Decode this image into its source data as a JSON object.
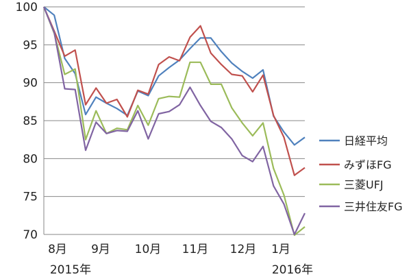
{
  "chart_data": {
    "type": "line",
    "title": "",
    "xlabel": "",
    "ylabel": "",
    "ylim": [
      70,
      100
    ],
    "yticks": [
      70,
      75,
      80,
      85,
      90,
      95,
      100
    ],
    "grid": "horizontal",
    "legend_position": "right",
    "x_month_labels": [
      "8月",
      "9月",
      "10月",
      "11月",
      "12月",
      "1月"
    ],
    "x_year_labels": [
      "2015年",
      "2016年"
    ],
    "series": [
      {
        "name": "日経平均",
        "color": "#4F81BD",
        "values": [
          100,
          98.9,
          93.2,
          91.2,
          85.8,
          88.1,
          87.3,
          86.6,
          85.7,
          88.9,
          88.3,
          90.9,
          92.0,
          93.0,
          94.5,
          95.9,
          95.9,
          94.1,
          92.6,
          91.5,
          90.6,
          91.7,
          85.6,
          83.5,
          81.8,
          82.8
        ]
      },
      {
        "name": "みずほFG",
        "color": "#C0504D",
        "values": [
          100,
          96.8,
          93.5,
          94.3,
          87.1,
          89.3,
          87.3,
          87.8,
          85.5,
          89.0,
          88.5,
          92.4,
          93.4,
          92.9,
          96.0,
          97.5,
          93.9,
          92.4,
          91.1,
          90.9,
          88.8,
          91.0,
          85.7,
          82.8,
          77.8,
          78.8
        ]
      },
      {
        "name": "三菱UFJ",
        "color": "#9BBB59",
        "values": [
          100,
          96.5,
          91.1,
          91.8,
          82.5,
          86.3,
          83.3,
          84.0,
          83.8,
          87.0,
          84.4,
          87.9,
          88.2,
          88.1,
          92.7,
          92.7,
          89.8,
          89.8,
          86.7,
          84.7,
          83.0,
          84.7,
          78.7,
          75.2,
          69.9,
          71.0
        ]
      },
      {
        "name": "三井住友FG",
        "color": "#8064A2",
        "values": [
          100,
          96.6,
          89.2,
          89.1,
          81.1,
          84.8,
          83.3,
          83.7,
          83.6,
          86.3,
          82.6,
          85.9,
          86.2,
          87.1,
          89.4,
          87.0,
          84.9,
          84.1,
          82.6,
          80.4,
          79.6,
          81.6,
          76.4,
          74.0,
          70.0,
          72.8
        ]
      }
    ]
  }
}
